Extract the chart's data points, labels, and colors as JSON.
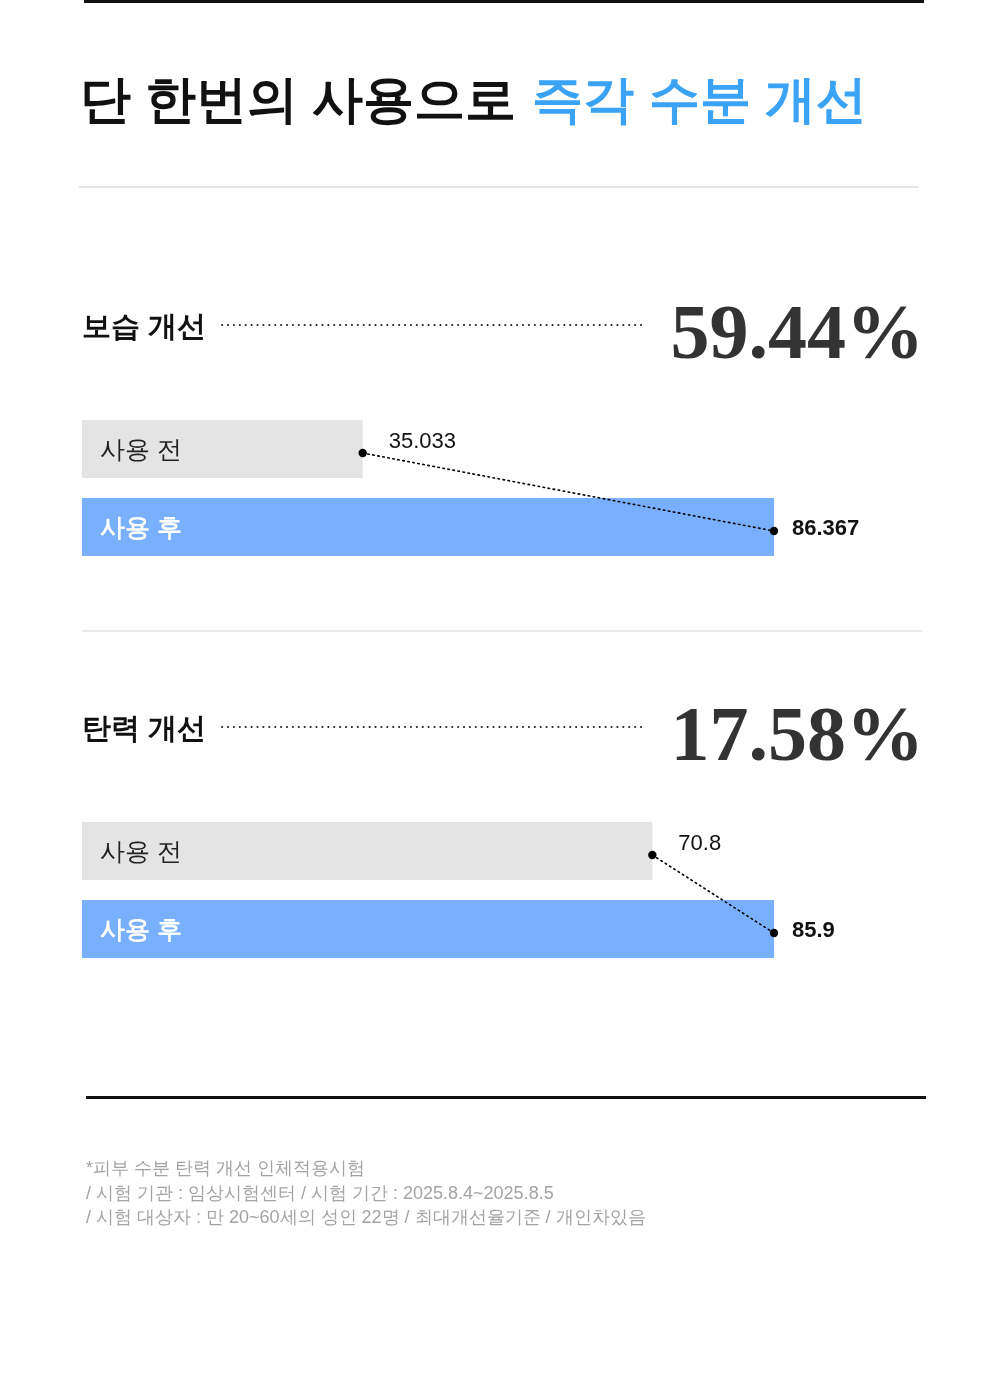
{
  "chart_data": [
    {
      "type": "other",
      "title": "단 한번의 사용으로",
      "subtitle": "즉각 수분 개선"
    },
    {
      "type": "bar",
      "orientation": "horizontal",
      "title": "보습 개선",
      "annotations": [
        "59.44%"
      ],
      "categories": [
        "사용 전",
        "사용 후"
      ],
      "series": [
        {
          "type": "bar",
          "colors": [
            "#e4e4e4",
            "#79b0fd"
          ],
          "values": [
            35.033,
            86.367
          ]
        },
        {
          "type": "line",
          "color": "#000000",
          "values": [
            35.033,
            86.367
          ],
          "value_labels": [
            "35.033",
            "86.367"
          ]
        }
      ],
      "marker": "circle",
      "line_style": "dotted"
    },
    {
      "type": "bar",
      "orientation": "horizontal",
      "title": "탄력 개선",
      "annotations": [
        "17.58%"
      ],
      "categories": [
        "사용 전",
        "사용 후"
      ],
      "series": [
        {
          "type": "bar",
          "colors": [
            "#e4e4e4",
            "#79b0fd"
          ],
          "values": [
            70.8,
            85.9
          ]
        },
        {
          "type": "line",
          "color": "#000000",
          "values": [
            70.8,
            85.9
          ],
          "value_labels": [
            "70.8",
            "85.9"
          ]
        }
      ],
      "marker": "circle",
      "line_style": "dotted"
    },
    {
      "type": "other",
      "annotations": [
        "*피부 수분 탄력 개선 인체적용시험",
        "/ 시험 기관 : 임상시험센터 / 시험 기간 : 2025.8.4~2025.8.5",
        "/ 시험 대상자 : 만 20~60세의 성인 22명 / 최대개선율기준 / 개인차있음"
      ]
    }
  ]
}
